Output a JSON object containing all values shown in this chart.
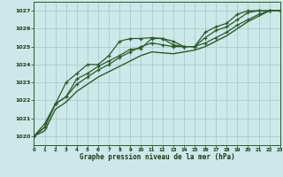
{
  "title": "Graphe pression niveau de la mer (hPa)",
  "background_color": "#cce8e8",
  "grid_color": "#aacccc",
  "line_color": "#2d5a2d",
  "xlim": [
    0,
    23
  ],
  "ylim": [
    1019.5,
    1027.5
  ],
  "yticks": [
    1020,
    1021,
    1022,
    1023,
    1024,
    1025,
    1026,
    1027
  ],
  "xticks": [
    0,
    1,
    2,
    3,
    4,
    5,
    6,
    7,
    8,
    9,
    10,
    11,
    12,
    13,
    14,
    15,
    16,
    17,
    18,
    19,
    20,
    21,
    22,
    23
  ],
  "series1_y": [
    1020.0,
    1020.7,
    1021.8,
    1023.0,
    1023.5,
    1024.0,
    1024.0,
    1024.5,
    1025.3,
    1025.45,
    1025.45,
    1025.5,
    1025.45,
    1025.1,
    1025.0,
    1025.0,
    1025.8,
    1026.1,
    1026.3,
    1026.8,
    1027.0,
    1027.0,
    1027.0,
    1027.0
  ],
  "series2_y": [
    1020.0,
    1020.5,
    1021.8,
    1022.2,
    1023.2,
    1023.5,
    1023.9,
    1024.2,
    1024.5,
    1024.85,
    1024.9,
    1025.45,
    1025.45,
    1025.3,
    1025.0,
    1025.0,
    1025.5,
    1025.9,
    1026.1,
    1026.5,
    1026.9,
    1027.0,
    1027.0,
    1027.0
  ],
  "series3_y": [
    1020.0,
    1020.5,
    1021.8,
    1022.2,
    1022.9,
    1023.3,
    1023.7,
    1024.0,
    1024.4,
    1024.7,
    1025.0,
    1025.2,
    1025.1,
    1025.0,
    1025.0,
    1025.0,
    1025.2,
    1025.5,
    1025.8,
    1026.2,
    1026.5,
    1026.8,
    1027.0,
    1027.0
  ],
  "series4_y": [
    1020.0,
    1020.3,
    1021.5,
    1021.9,
    1022.5,
    1022.9,
    1023.3,
    1023.6,
    1023.9,
    1024.2,
    1024.5,
    1024.7,
    1024.65,
    1024.6,
    1024.7,
    1024.8,
    1025.0,
    1025.3,
    1025.6,
    1026.0,
    1026.4,
    1026.7,
    1027.0,
    1027.0
  ]
}
